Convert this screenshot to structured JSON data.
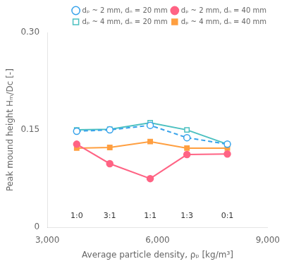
{
  "chart_data": {
    "type": "line",
    "x": [
      3800,
      4700,
      5800,
      6800,
      7900
    ],
    "series": [
      {
        "name": "dₚ ~ 2 mm, dₙ = 20 mm",
        "values": [
          0.148,
          0.15,
          0.157,
          0.138,
          0.128
        ],
        "marker": "circle-open",
        "line_style": "dashed"
      },
      {
        "name": "dₚ ~ 2 mm, dₙ = 40 mm",
        "values": [
          0.128,
          0.098,
          0.075,
          0.112,
          0.113
        ],
        "marker": "circle-filled",
        "line_style": "solid"
      },
      {
        "name": "dₚ ~ 4 mm, dₙ = 20 mm",
        "values": [
          0.15,
          0.151,
          0.161,
          0.15,
          0.128
        ],
        "marker": "square-open",
        "line_style": "solid"
      },
      {
        "name": "dₚ ~ 4 mm, dₙ = 40 mm",
        "values": [
          0.122,
          0.123,
          0.132,
          0.122,
          0.122
        ],
        "marker": "square-filled",
        "line_style": "solid"
      }
    ],
    "xlabel": "Average particle density, ρₚ [kg/m³]",
    "ylabel": "Peak mound height Hₘ/Dc [-]",
    "xlim": [
      3000,
      9000
    ],
    "ylim": [
      0,
      0.3
    ],
    "xticks": [
      {
        "value": 3000,
        "label": "3,000"
      },
      {
        "value": 6000,
        "label": "6,000"
      },
      {
        "value": 9000,
        "label": "9,000"
      }
    ],
    "yticks": [
      0,
      0.15,
      {
        "value": 0.3,
        "label": "0.30"
      }
    ],
    "grid": false,
    "legend": "upper right",
    "annotations": [
      {
        "x": 3800,
        "y": 0.012,
        "text": "1:0"
      },
      {
        "x": 4700,
        "y": 0.012,
        "text": "3:1"
      },
      {
        "x": 5800,
        "y": 0.012,
        "text": "1:1"
      },
      {
        "x": 6800,
        "y": 0.012,
        "text": "1:3"
      },
      {
        "x": 7900,
        "y": 0.012,
        "text": "0:1"
      }
    ]
  }
}
